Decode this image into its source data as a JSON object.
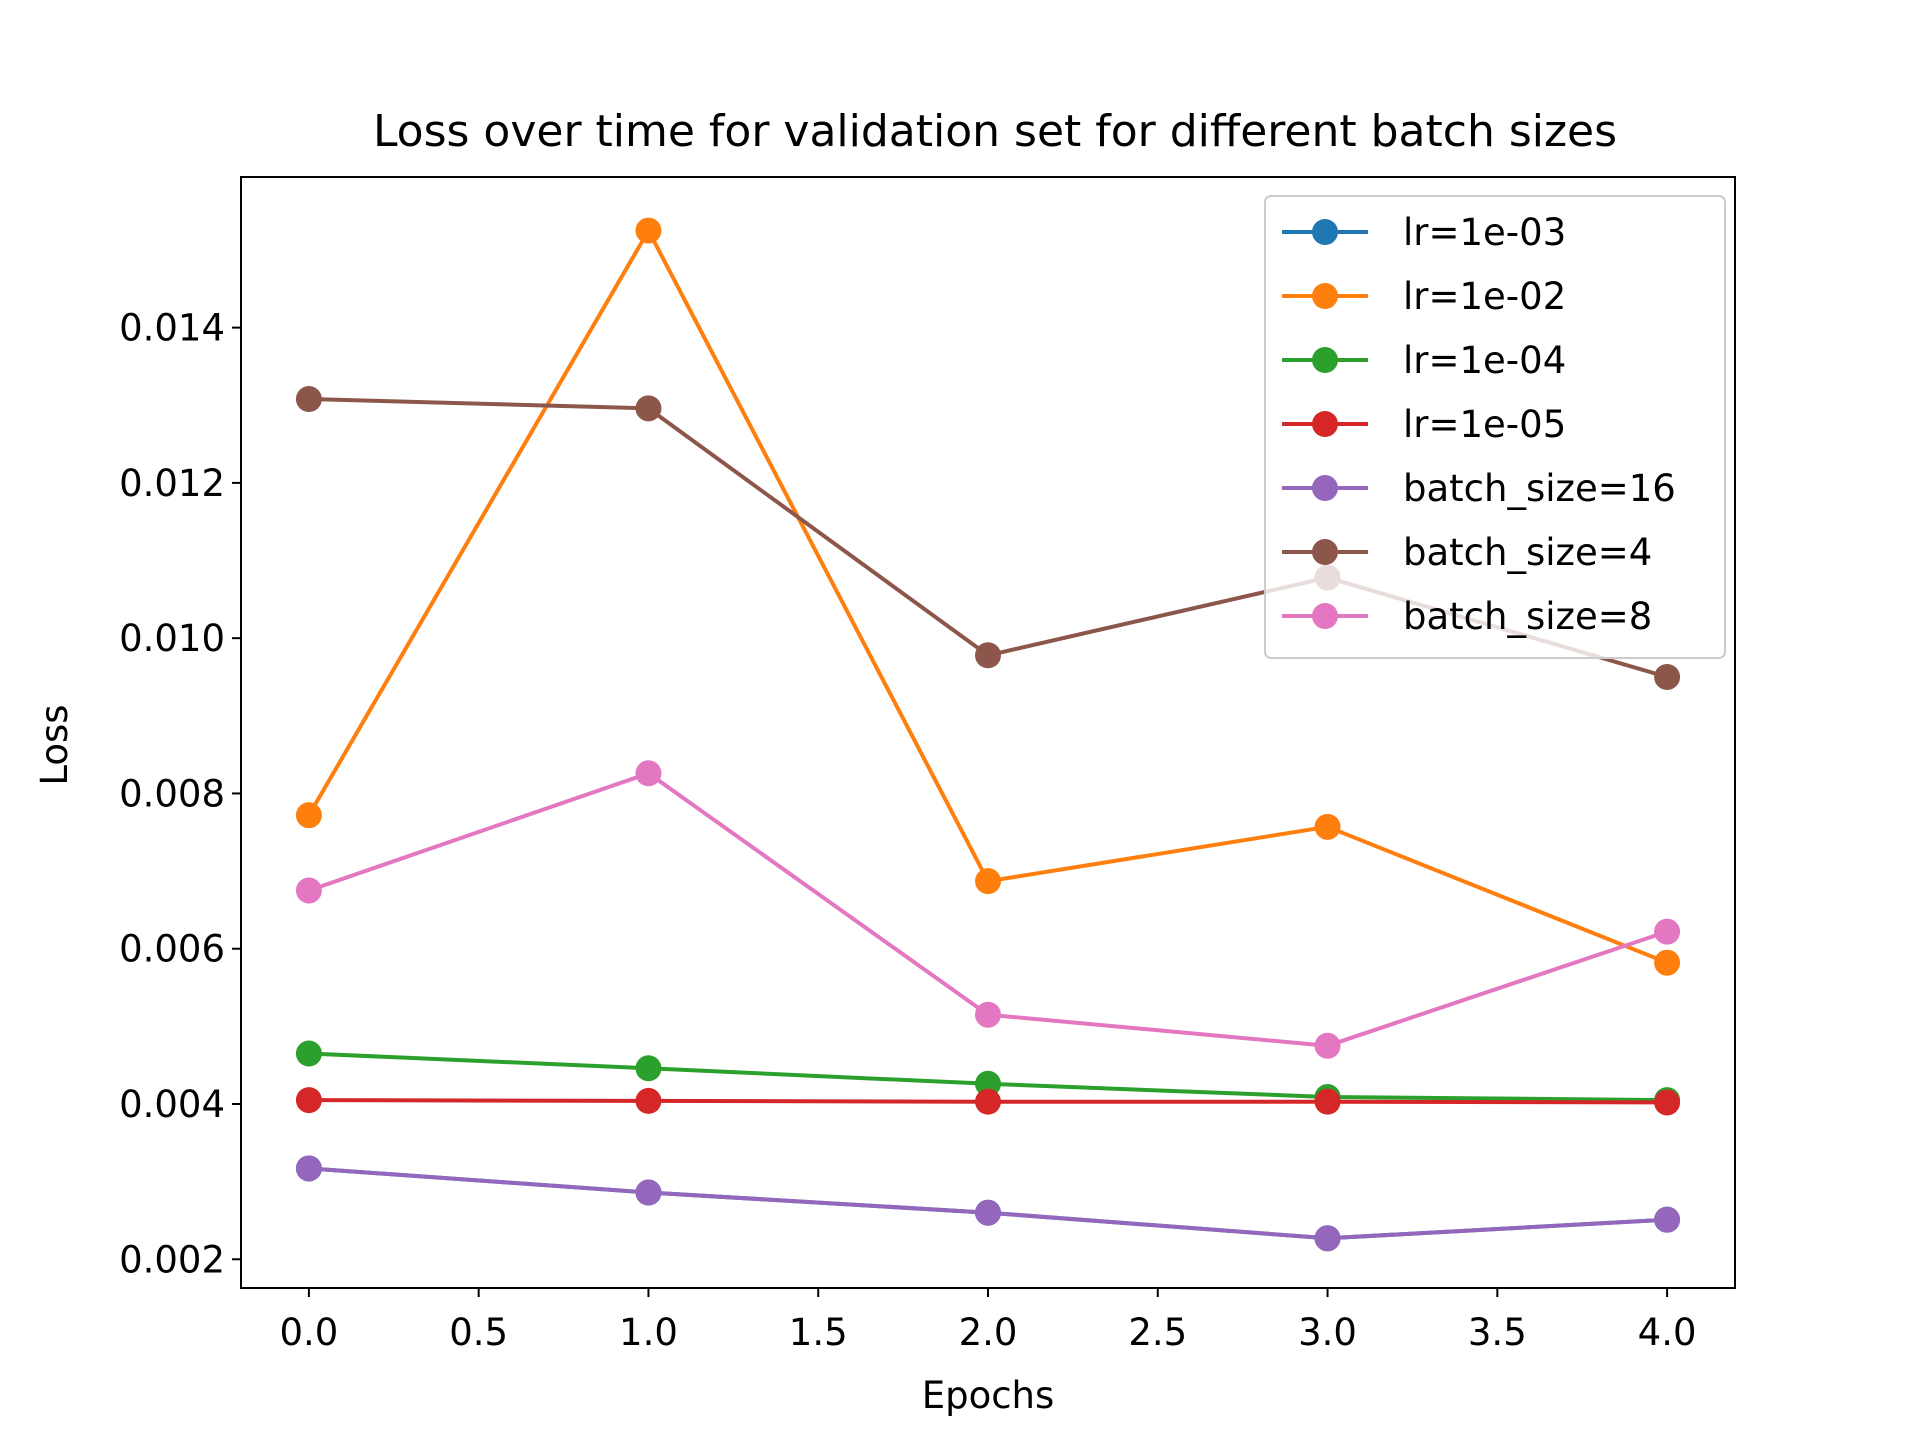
{
  "chart_data": {
    "type": "line",
    "title": "Loss over time for validation set for different batch sizes",
    "xlabel": "Epochs",
    "ylabel": "Loss",
    "xlim": [
      -0.2,
      4.2
    ],
    "ylim": [
      0.00163,
      0.01594
    ],
    "x": [
      0,
      1,
      2,
      3,
      4
    ],
    "xticks": [
      0.0,
      0.5,
      1.0,
      1.5,
      2.0,
      2.5,
      3.0,
      3.5,
      4.0
    ],
    "xtick_labels": [
      "0.0",
      "0.5",
      "1.0",
      "1.5",
      "2.0",
      "2.5",
      "3.0",
      "3.5",
      "4.0"
    ],
    "yticks": [
      0.002,
      0.004,
      0.006,
      0.008,
      0.01,
      0.012,
      0.014
    ],
    "ytick_labels": [
      "0.002",
      "0.004",
      "0.006",
      "0.008",
      "0.010",
      "0.012",
      "0.014"
    ],
    "grid": false,
    "legend_position": "top-right",
    "series": [
      {
        "name": "lr=1e-03",
        "color": "#1f77b4",
        "values": [
          0.00317,
          0.00286,
          0.0026,
          0.00227,
          0.00251
        ]
      },
      {
        "name": "lr=1e-02",
        "color": "#ff7f0e",
        "values": [
          0.00772,
          0.01525,
          0.00687,
          0.00757,
          0.00582
        ]
      },
      {
        "name": "lr=1e-04",
        "color": "#2ca02c",
        "values": [
          0.00465,
          0.00446,
          0.00426,
          0.00409,
          0.00405
        ]
      },
      {
        "name": "lr=1e-05",
        "color": "#d62728",
        "values": [
          0.00405,
          0.00404,
          0.00403,
          0.00403,
          0.00402
        ]
      },
      {
        "name": "batch_size=16",
        "color": "#9467bd",
        "values": [
          0.00317,
          0.00286,
          0.0026,
          0.00227,
          0.00251
        ]
      },
      {
        "name": "batch_size=4",
        "color": "#8c564b",
        "values": [
          0.01308,
          0.01296,
          0.00978,
          0.01078,
          0.0095
        ]
      },
      {
        "name": "batch_size=8",
        "color": "#e377c2",
        "values": [
          0.00675,
          0.00826,
          0.00515,
          0.00475,
          0.00622
        ]
      }
    ]
  }
}
